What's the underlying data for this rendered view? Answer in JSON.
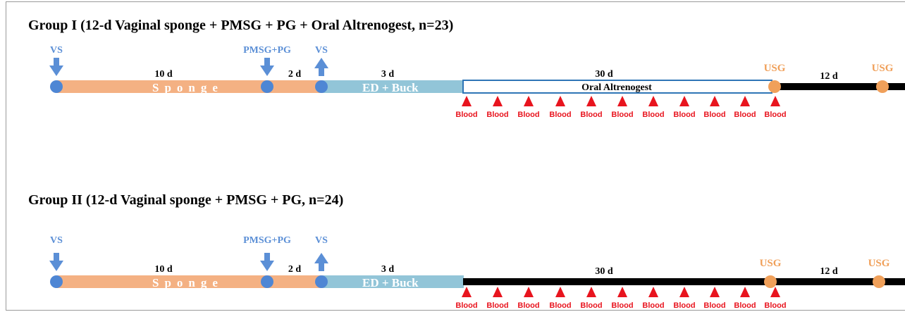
{
  "colors": {
    "sponge_bar": "#f4b183",
    "ed_bar": "#92c5d8",
    "event_dot": "#4e86d4",
    "arrow": "#5b8fd6",
    "usg": "#f0a05a",
    "blood": "#e8141e",
    "timeline": "#000000",
    "altrenogest_border": "#2e75b6"
  },
  "icons": {
    "arrow": "arrow-icon",
    "blood": "triangle-marker-icon",
    "event": "circle-marker-icon"
  },
  "group1": {
    "title": "Group I (12-d Vaginal sponge + PMSG + PG + Oral Altrenogest, n=23)",
    "vs_insert": "VS",
    "pmsg_pg": "PMSG+PG",
    "vs_remove": "VS",
    "sponge_days": "10 d",
    "sponge_label": "Sponge",
    "pmsg_days": "2 d",
    "ed_days": "3 d",
    "ed_label": "ED + Buck",
    "treat_days": "30 d",
    "treat_label": "Oral Altrenogest",
    "usg1": "USG",
    "usg_interval": "12 d",
    "usg2": "USG",
    "blood": [
      "Blood",
      "Blood",
      "Blood",
      "Blood",
      "Blood",
      "Blood",
      "Blood",
      "Blood",
      "Blood",
      "Blood",
      "Blood"
    ]
  },
  "group2": {
    "title": "Group II (12-d Vaginal sponge + PMSG + PG, n=24)",
    "vs_insert": "VS",
    "pmsg_pg": "PMSG+PG",
    "vs_remove": "VS",
    "sponge_days": "10 d",
    "sponge_label": "Sponge",
    "pmsg_days": "2 d",
    "ed_days": "3 d",
    "ed_label": "ED + Buck",
    "treat_days": "30 d",
    "usg1": "USG",
    "usg_interval": "12 d",
    "usg2": "USG",
    "blood": [
      "Blood",
      "Blood",
      "Blood",
      "Blood",
      "Blood",
      "Blood",
      "Blood",
      "Blood",
      "Blood",
      "Blood",
      "Blood"
    ]
  }
}
